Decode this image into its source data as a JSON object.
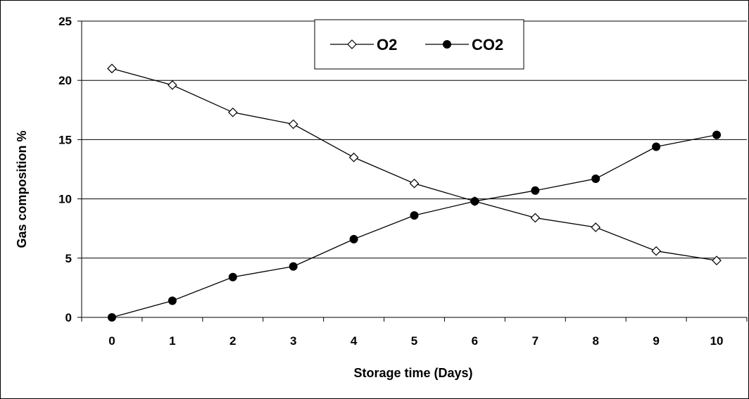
{
  "chart_data": {
    "type": "line",
    "xlabel": "Storage time (Days)",
    "ylabel": "Gas composition %",
    "x": [
      0,
      1,
      2,
      3,
      4,
      5,
      6,
      7,
      8,
      9,
      10
    ],
    "xlim": [
      0,
      10
    ],
    "ylim": [
      0,
      25
    ],
    "yticks": [
      0,
      5,
      10,
      15,
      20,
      25
    ],
    "grid": "horizontal",
    "legend_position": "top-center",
    "series": [
      {
        "name": "O2",
        "marker": "open-diamond",
        "color": "#000000",
        "values": [
          21.0,
          19.6,
          17.3,
          16.3,
          13.5,
          11.3,
          9.8,
          8.4,
          7.6,
          5.6,
          4.8
        ]
      },
      {
        "name": "CO2",
        "marker": "filled-circle",
        "color": "#000000",
        "values": [
          0.0,
          1.4,
          3.4,
          4.3,
          6.6,
          8.6,
          9.8,
          10.7,
          11.7,
          14.4,
          15.4
        ]
      }
    ]
  }
}
